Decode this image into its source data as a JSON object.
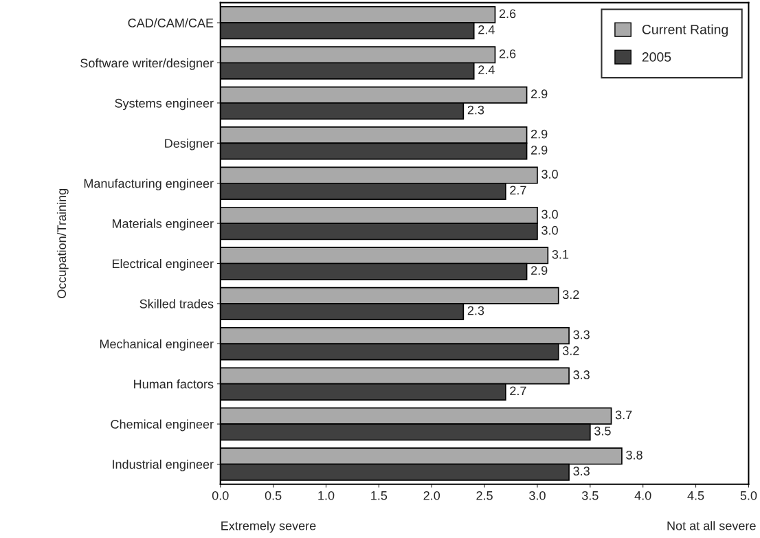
{
  "chart_data": {
    "type": "bar",
    "orientation": "horizontal",
    "ylabel": "Occupation/Training",
    "categories": [
      "CAD/CAM/CAE",
      "Software writer/designer",
      "Systems engineer",
      "Designer",
      "Manufacturing engineer",
      "Materials engineer",
      "Electrical engineer",
      "Skilled trades",
      "Mechanical engineer",
      "Human factors",
      "Chemical engineer",
      "Industrial engineer"
    ],
    "series": [
      {
        "name": "Current Rating",
        "color": "#a9a9a9",
        "values": [
          2.6,
          2.6,
          2.9,
          2.9,
          3.0,
          3.0,
          3.1,
          3.2,
          3.3,
          3.3,
          3.7,
          3.8
        ],
        "value_labels": [
          "2.6",
          "2.6",
          "2.9",
          "2.9",
          "3.0",
          "3.0",
          "3.1",
          "3.2",
          "3.3",
          "3.3",
          "3.7",
          "3.8"
        ]
      },
      {
        "name": "2005",
        "color": "#404040",
        "values": [
          2.4,
          2.4,
          2.3,
          2.9,
          2.7,
          3.0,
          2.9,
          2.3,
          3.2,
          2.7,
          3.5,
          3.3
        ],
        "value_labels": [
          "2.4",
          "2.4",
          "2.3",
          "2.9",
          "2.7",
          "3.0",
          "2.9",
          "2.3",
          "3.2",
          "2.7",
          "3.5",
          "3.3"
        ]
      }
    ],
    "xlim": [
      0,
      5
    ],
    "xticks": [
      {
        "value": 0,
        "label": "0.0"
      },
      {
        "value": 0.5,
        "label": "0.5"
      },
      {
        "value": 1,
        "label": "1.0"
      },
      {
        "value": 1.5,
        "label": "1.5"
      },
      {
        "value": 2,
        "label": "2.0"
      },
      {
        "value": 2.5,
        "label": "2.5"
      },
      {
        "value": 3,
        "label": "3.0"
      },
      {
        "value": 3.5,
        "label": "3.5"
      },
      {
        "value": 4,
        "label": "4.0"
      },
      {
        "value": 4.5,
        "label": "4.5"
      },
      {
        "value": 5,
        "label": "5.0"
      }
    ],
    "legend": "top right",
    "grid": false,
    "annotations": [
      "Extremely severe",
      "Not at all severe"
    ]
  }
}
